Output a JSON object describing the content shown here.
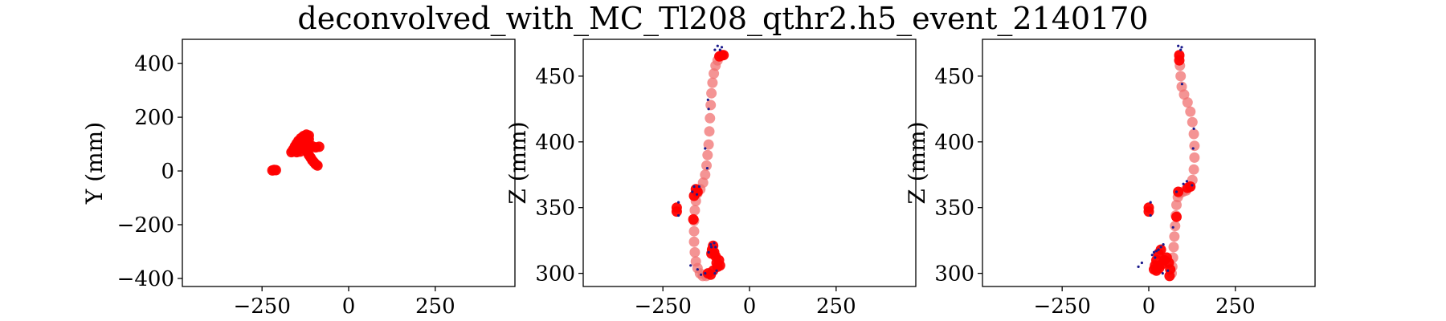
{
  "figure": {
    "suptitle": "deconvolved_with_MC_Tl208_qthr2.h5_event_2140170"
  },
  "colors": {
    "track": "#ff0000",
    "track_faint": "#f07070",
    "hits": "#1a1a8c"
  },
  "chart_data": [
    {
      "type": "scatter",
      "panel": "XY",
      "xlabel": "",
      "ylabel": "Y (mm)",
      "xlim": [
        -480,
        480
      ],
      "ylim": [
        -430,
        490
      ],
      "xticks": [
        -250,
        0,
        250
      ],
      "yticks": [
        -400,
        -200,
        0,
        200,
        400
      ],
      "xtick_labels": [
        "−250",
        "0",
        "250"
      ],
      "ytick_labels": [
        "−400",
        "−200",
        "0",
        "200",
        "400"
      ],
      "series": [
        {
          "style": "track",
          "points": [
            [
              -220,
              2
            ],
            [
              -215,
              4
            ],
            [
              -210,
              3
            ],
            [
              -165,
              70
            ],
            [
              -160,
              80
            ],
            [
              -155,
              92
            ],
            [
              -150,
              102
            ],
            [
              -145,
              112
            ],
            [
              -138,
              122
            ],
            [
              -130,
              130
            ],
            [
              -122,
              135
            ],
            [
              -115,
              132
            ],
            [
              -115,
              118
            ],
            [
              -118,
              105
            ],
            [
              -122,
              95
            ],
            [
              -125,
              85
            ],
            [
              -120,
              72
            ],
            [
              -115,
              60
            ],
            [
              -110,
              50
            ],
            [
              -105,
              40
            ],
            [
              -100,
              32
            ],
            [
              -95,
              25
            ],
            [
              -90,
              20
            ],
            [
              -135,
              85
            ],
            [
              -125,
              90
            ],
            [
              -115,
              95
            ],
            [
              -105,
              92
            ],
            [
              -95,
              88
            ],
            [
              -85,
              90
            ],
            [
              -160,
              75
            ],
            [
              -150,
              70
            ],
            [
              -140,
              72
            ]
          ]
        }
      ]
    },
    {
      "type": "scatter",
      "panel": "XZ",
      "xlabel": "",
      "ylabel": "Z (mm)",
      "xlim": [
        -480,
        480
      ],
      "ylim": [
        290,
        478
      ],
      "xticks": [
        -250,
        0,
        250
      ],
      "yticks": [
        300,
        350,
        400,
        450
      ],
      "xtick_labels": [
        "−250",
        "0",
        "250"
      ],
      "ytick_labels": [
        "300",
        "350",
        "400",
        "450"
      ],
      "series": [
        {
          "style": "faint",
          "points": [
            [
              -85,
              465
            ],
            [
              -92,
              462
            ],
            [
              -98,
              458
            ],
            [
              -103,
              452
            ],
            [
              -107,
              445
            ],
            [
              -110,
              437
            ],
            [
              -112,
              428
            ],
            [
              -114,
              418
            ],
            [
              -116,
              408
            ],
            [
              -118,
              398
            ],
            [
              -121,
              390
            ],
            [
              -124,
              382
            ],
            [
              -128,
              375
            ],
            [
              -134,
              369
            ],
            [
              -142,
              364
            ],
            [
              -150,
              361
            ],
            [
              -155,
              355
            ],
            [
              -158,
              348
            ],
            [
              -160,
              340
            ],
            [
              -160,
              332
            ],
            [
              -160,
              324
            ],
            [
              -158,
              316
            ],
            [
              -155,
              309
            ],
            [
              -150,
              304
            ],
            [
              -143,
              300
            ],
            [
              -135,
              298
            ],
            [
              -125,
              298
            ]
          ]
        },
        {
          "style": "track",
          "points": [
            [
              -75,
              466
            ],
            [
              -80,
              466
            ],
            [
              -87,
              465
            ],
            [
              -155,
              364
            ],
            [
              -150,
              362
            ],
            [
              -160,
              359
            ],
            [
              -162,
              341
            ],
            [
              -210,
              350
            ],
            [
              -210,
              347
            ],
            [
              -110,
              315
            ],
            [
              -108,
              318
            ],
            [
              -105,
              321
            ],
            [
              -102,
              316
            ],
            [
              -98,
              313
            ],
            [
              -95,
              308
            ],
            [
              -92,
              305
            ],
            [
              -88,
              310
            ],
            [
              -85,
              306
            ],
            [
              -120,
              300
            ],
            [
              -112,
              299
            ],
            [
              -105,
              302
            ]
          ]
        },
        {
          "style": "hits",
          "points": [
            [
              -92,
              473
            ],
            [
              -80,
              472
            ],
            [
              -85,
              470
            ],
            [
              -100,
              470
            ],
            [
              -160,
              366
            ],
            [
              -165,
              362
            ],
            [
              -152,
              360
            ],
            [
              -145,
              366
            ],
            [
              -205,
              354
            ],
            [
              -205,
              344
            ],
            [
              -112,
              322
            ],
            [
              -102,
              323
            ],
            [
              -98,
              320
            ],
            [
              -110,
              320
            ],
            [
              -118,
              316
            ],
            [
              -95,
              302
            ],
            [
              -100,
              300
            ],
            [
              -128,
              300
            ],
            [
              -140,
              299
            ],
            [
              -170,
              306
            ],
            [
              -150,
              303
            ],
            [
              -120,
              432
            ],
            [
              -118,
              425
            ],
            [
              -128,
              395
            ],
            [
              -122,
              380
            ]
          ]
        }
      ]
    },
    {
      "type": "scatter",
      "panel": "YZ",
      "xlabel": "",
      "ylabel": "Z (mm)",
      "xlim": [
        -480,
        480
      ],
      "ylim": [
        290,
        478
      ],
      "xticks": [
        -250,
        0,
        250
      ],
      "yticks": [
        300,
        350,
        400,
        450
      ],
      "xtick_labels": [
        "−250",
        "0",
        "250"
      ],
      "ytick_labels": [
        "300",
        "350",
        "400",
        "450"
      ],
      "series": [
        {
          "style": "faint",
          "points": [
            [
              88,
              465
            ],
            [
              90,
              458
            ],
            [
              92,
              450
            ],
            [
              95,
              442
            ],
            [
              102,
              436
            ],
            [
              112,
              430
            ],
            [
              120,
              423
            ],
            [
              126,
              415
            ],
            [
              130,
              406
            ],
            [
              132,
              397
            ],
            [
              132,
              388
            ],
            [
              130,
              379
            ],
            [
              126,
              371
            ],
            [
              118,
              366
            ],
            [
              108,
              363
            ],
            [
              98,
              362
            ],
            [
              90,
              361
            ],
            [
              84,
              358
            ],
            [
              80,
              352
            ],
            [
              78,
              344
            ],
            [
              76,
              336
            ],
            [
              74,
              328
            ],
            [
              72,
              320
            ],
            [
              70,
              312
            ],
            [
              68,
              305
            ],
            [
              66,
              300
            ]
          ]
        },
        {
          "style": "track",
          "points": [
            [
              88,
              466
            ],
            [
              88,
              462
            ],
            [
              120,
              366
            ],
            [
              112,
              365
            ],
            [
              85,
              362
            ],
            [
              80,
              343
            ],
            [
              0,
              350
            ],
            [
              0,
              347
            ],
            [
              35,
              318
            ],
            [
              28,
              315
            ],
            [
              22,
              310
            ],
            [
              18,
              306
            ],
            [
              15,
              303
            ],
            [
              22,
              302
            ],
            [
              30,
              304
            ],
            [
              38,
              307
            ],
            [
              45,
              310
            ],
            [
              52,
              312
            ],
            [
              58,
              308
            ],
            [
              62,
              303
            ],
            [
              60,
              298
            ]
          ]
        },
        {
          "style": "hits",
          "points": [
            [
              85,
              473
            ],
            [
              95,
              472
            ],
            [
              92,
              470
            ],
            [
              100,
              368
            ],
            [
              110,
              370
            ],
            [
              125,
              367
            ],
            [
              80,
              362
            ],
            [
              5,
              354
            ],
            [
              5,
              344
            ],
            [
              70,
              335
            ],
            [
              42,
              322
            ],
            [
              35,
              320
            ],
            [
              28,
              318
            ],
            [
              22,
              317
            ],
            [
              15,
              316
            ],
            [
              10,
              314
            ],
            [
              18,
              312
            ],
            [
              40,
              300
            ],
            [
              55,
              302
            ],
            [
              -30,
              305
            ],
            [
              -20,
              308
            ],
            [
              130,
              410
            ],
            [
              128,
              395
            ],
            [
              96,
              444
            ]
          ]
        }
      ]
    }
  ]
}
